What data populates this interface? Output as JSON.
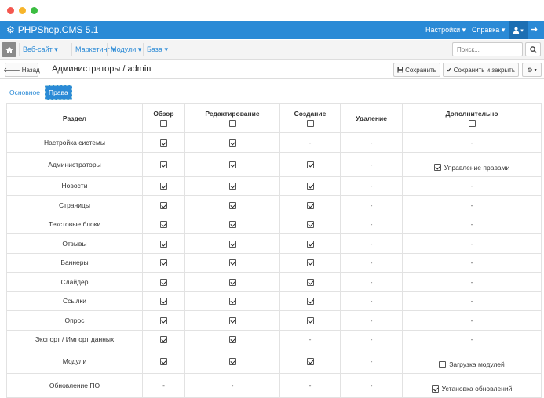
{
  "header": {
    "brand": "PHPShop.CMS 5.1",
    "settings": "Настройки",
    "help": "Справка"
  },
  "nav": {
    "items": [
      "Веб-сайт",
      "Маркетинг",
      "Модули",
      "База"
    ],
    "search_placeholder": "Поиск..."
  },
  "toolbar": {
    "back": "Назад",
    "title": "Администраторы / admin",
    "save": "Сохранить",
    "save_close": "Сохранить и закрыть"
  },
  "tabs": [
    "Основное",
    "Права"
  ],
  "table": {
    "columns": [
      "Раздел",
      "Обзор",
      "Редактирование",
      "Создание",
      "Удаление",
      "Дополнительно"
    ],
    "rows": [
      {
        "section": "Настройка системы",
        "view": true,
        "edit": true,
        "create": "-",
        "delete": "-",
        "extra": "-"
      },
      {
        "section": "Администраторы",
        "view": true,
        "edit": true,
        "create": true,
        "delete": "-",
        "extra_label": "Управление правами",
        "extra_checked": true
      },
      {
        "section": "Новости",
        "view": true,
        "edit": true,
        "create": true,
        "delete": "-",
        "extra": "-"
      },
      {
        "section": "Страницы",
        "view": true,
        "edit": true,
        "create": true,
        "delete": "-",
        "extra": "-"
      },
      {
        "section": "Текстовые блоки",
        "view": true,
        "edit": true,
        "create": true,
        "delete": "-",
        "extra": "-"
      },
      {
        "section": "Отзывы",
        "view": true,
        "edit": true,
        "create": true,
        "delete": "-",
        "extra": "-"
      },
      {
        "section": "Баннеры",
        "view": true,
        "edit": true,
        "create": true,
        "delete": "-",
        "extra": "-"
      },
      {
        "section": "Слайдер",
        "view": true,
        "edit": true,
        "create": true,
        "delete": "-",
        "extra": "-"
      },
      {
        "section": "Ссылки",
        "view": true,
        "edit": true,
        "create": true,
        "delete": "-",
        "extra": "-"
      },
      {
        "section": "Опрос",
        "view": true,
        "edit": true,
        "create": true,
        "delete": "-",
        "extra": "-"
      },
      {
        "section": "Экспорт / Импорт данных",
        "view": true,
        "edit": true,
        "create": "-",
        "delete": "-",
        "extra": "-"
      },
      {
        "section": "Модули",
        "view": true,
        "edit": true,
        "create": true,
        "delete": "-",
        "extra_label": "Загрузка модулей",
        "extra_checked": false
      },
      {
        "section": "Обновление ПО",
        "view": "-",
        "edit": "-",
        "create": "-",
        "delete": "-",
        "extra_label": "Установка обновлений",
        "extra_checked": true
      }
    ]
  }
}
